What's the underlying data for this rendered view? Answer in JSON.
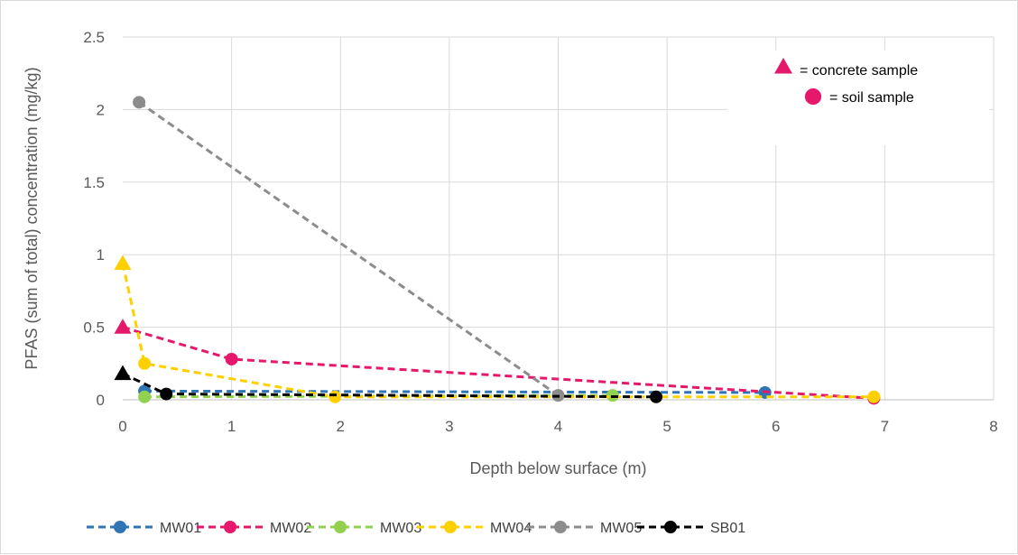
{
  "chart_data": {
    "type": "scatter",
    "xlabel": "Depth below surface (m)",
    "ylabel": "PFAS (sum of total) concentration (mg/kg)",
    "xlim": [
      0,
      8
    ],
    "ylim": [
      0,
      2.5
    ],
    "x_ticks": [
      "0",
      "1",
      "2",
      "3",
      "4",
      "5",
      "6",
      "7",
      "8"
    ],
    "y_ticks": [
      "0",
      "0.5",
      "1",
      "1.5",
      "2",
      "2.5"
    ],
    "grid": true,
    "line_style": "dashed",
    "legend_placement": "bottom",
    "series": [
      {
        "name": "MW01",
        "color": "#2E75B6",
        "points": [
          {
            "x": 0.2,
            "y": 0.06,
            "marker": "circle"
          },
          {
            "x": 5.9,
            "y": 0.05,
            "marker": "circle"
          }
        ]
      },
      {
        "name": "MW02",
        "color": "#E6186B",
        "points": [
          {
            "x": 0.0,
            "y": 0.5,
            "marker": "triangle"
          },
          {
            "x": 1.0,
            "y": 0.28,
            "marker": "circle"
          },
          {
            "x": 6.9,
            "y": 0.01,
            "marker": "circle"
          }
        ]
      },
      {
        "name": "MW03",
        "color": "#92D050",
        "points": [
          {
            "x": 0.2,
            "y": 0.02,
            "marker": "circle"
          },
          {
            "x": 4.5,
            "y": 0.03,
            "marker": "circle"
          }
        ]
      },
      {
        "name": "MW04",
        "color": "#FFD000",
        "points": [
          {
            "x": 0.0,
            "y": 0.94,
            "marker": "triangle"
          },
          {
            "x": 0.2,
            "y": 0.25,
            "marker": "circle"
          },
          {
            "x": 1.95,
            "y": 0.02,
            "marker": "circle"
          },
          {
            "x": 6.9,
            "y": 0.02,
            "marker": "circle"
          }
        ]
      },
      {
        "name": "MW05",
        "color": "#8C8C8C",
        "points": [
          {
            "x": 0.15,
            "y": 2.05,
            "marker": "circle"
          },
          {
            "x": 4.0,
            "y": 0.03,
            "marker": "circle"
          }
        ]
      },
      {
        "name": "SB01",
        "color": "#000000",
        "points": [
          {
            "x": 0.0,
            "y": 0.18,
            "marker": "triangle"
          },
          {
            "x": 0.4,
            "y": 0.04,
            "marker": "circle"
          },
          {
            "x": 4.9,
            "y": 0.02,
            "marker": "circle"
          }
        ]
      }
    ],
    "marker_key": {
      "color": "#E6186B",
      "placement": "top-right",
      "items": [
        {
          "marker": "triangle",
          "label": "= concrete sample"
        },
        {
          "marker": "circle",
          "label": "= soil sample"
        }
      ]
    }
  }
}
